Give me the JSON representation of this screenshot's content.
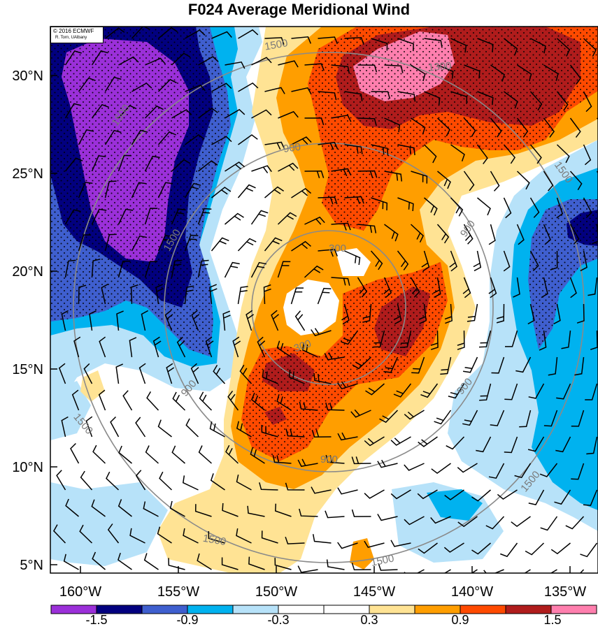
{
  "title": "F024 Average Meridional Wind",
  "credit": {
    "line1": "© 2016 ECMWF",
    "line2": "R. Torn, UAlbany"
  },
  "map": {
    "lat_labels": [
      "30°N",
      "25°N",
      "20°N",
      "15°N",
      "10°N",
      "5°N"
    ],
    "lon_labels": [
      "160°W",
      "155°W",
      "150°W",
      "145°W",
      "140°W",
      "135°W"
    ],
    "lat_range": [
      4.5,
      32.5
    ],
    "lon_range": [
      -161.5,
      -133.5
    ],
    "stippling": "dots where |value| exceeds 0.9",
    "wind_barbs": true
  },
  "contours": {
    "color": "#8a8a8a",
    "labels": [
      "1500",
      "1500",
      "1500",
      "900",
      "900",
      "900",
      "300",
      "300",
      "1500",
      "1500",
      "1500",
      "1500",
      "1500",
      "900",
      "900",
      "1300",
      "1500"
    ]
  },
  "colorbar": {
    "tick_labels": [
      "-1.5",
      "-0.9",
      "-0.3",
      "0.3",
      "0.9",
      "1.5"
    ],
    "colors": [
      "#9b30d9",
      "#02007f",
      "#3f5fcf",
      "#00b2ef",
      "#b7e2f9",
      "#ffffff",
      "#ffffff",
      "#ffe394",
      "#ff9e00",
      "#ff4a00",
      "#b01c1c",
      "#ff7fae"
    ]
  }
}
